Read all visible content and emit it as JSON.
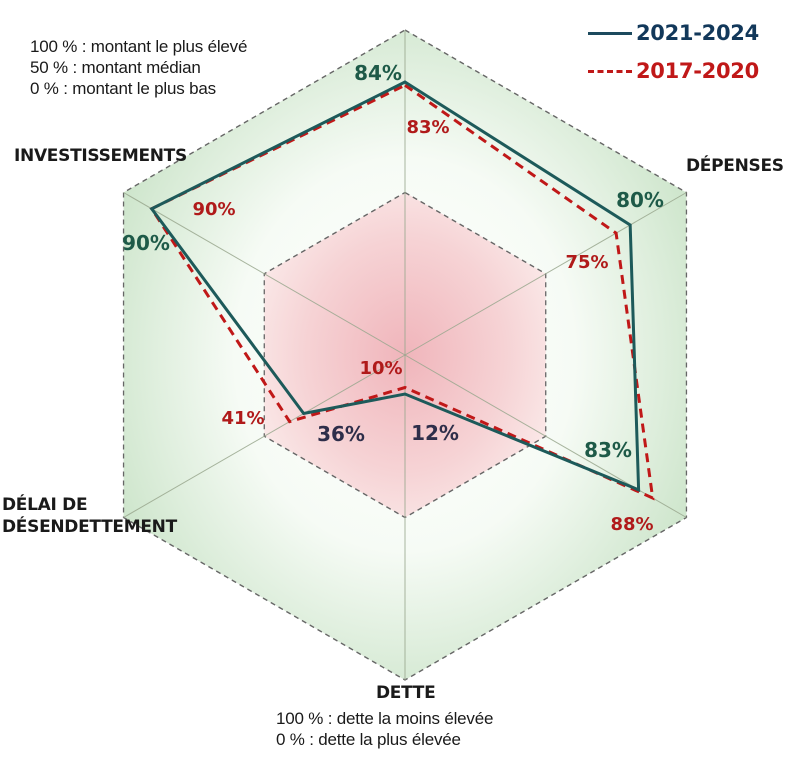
{
  "chart_data": {
    "type": "radar",
    "title": "",
    "axes": [
      {
        "key": "top",
        "label": ""
      },
      {
        "key": "depenses",
        "label": "DÉPENSES"
      },
      {
        "key": "lower-right",
        "label": ""
      },
      {
        "key": "dette",
        "label": "DETTE"
      },
      {
        "key": "delai",
        "label": "DÉLAI DE DÉSENDETTEMENT"
      },
      {
        "key": "investissements",
        "label": "INVESTISSEMENTS"
      }
    ],
    "range": [
      0,
      100
    ],
    "unit": "%",
    "rings": [
      50,
      100
    ],
    "series": [
      {
        "name": "2021-2024",
        "style": "solid",
        "color": "#1d5a5a",
        "label_color": "#1e5a48",
        "values": [
          84,
          80,
          83,
          12,
          36,
          90
        ],
        "labels": [
          "84%",
          "80%",
          "83%",
          "12%",
          "36%",
          "90%"
        ]
      },
      {
        "name": "2017-2020",
        "style": "dashed",
        "color": "#c01818",
        "label_color": "#b01a1a",
        "values": [
          83,
          75,
          88,
          10,
          41,
          90
        ],
        "labels": [
          "83%",
          "75%",
          "88%",
          "10%",
          "41%",
          "90%"
        ]
      }
    ],
    "legend": {
      "placement": "top-right"
    }
  },
  "notes": {
    "scale_lines": [
      "100 % : montant le plus élevé",
      "50 % : montant médian",
      "0 % : montant le plus bas"
    ],
    "dette_label": "DETTE",
    "dette_lines": [
      "100 % : dette la moins élevée",
      "0 % : dette la plus élevée"
    ]
  },
  "labels": {
    "investissements": "INVESTISSEMENTS",
    "depenses": "DÉPENSES",
    "delai_1": "DÉLAI DE",
    "delai_2": "DÉSENDETTEMENT"
  },
  "legend": {
    "series_1": "2021-2024",
    "series_2": "2017-2020",
    "series_1_color": "#12385a",
    "series_2_color": "#c01818"
  }
}
